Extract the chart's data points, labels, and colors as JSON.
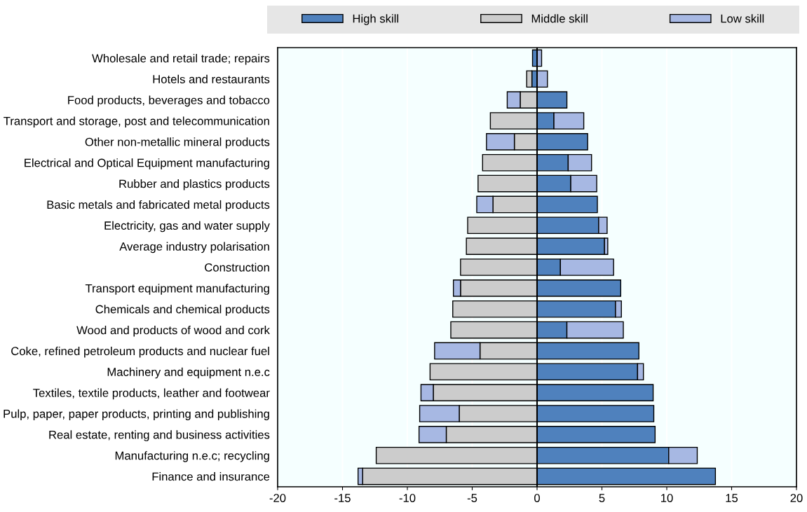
{
  "chart_data": {
    "type": "bar",
    "orientation": "horizontal",
    "stacked": true,
    "categories": [
      "Wholesale and retail trade; repairs",
      "Hotels and restaurants",
      "Food products, beverages and tobacco",
      "Transport and storage, post and telecommunication",
      "Other non-metallic mineral products",
      "Electrical and Optical Equipment manufacturing",
      "Rubber and plastics products",
      "Basic metals and fabricated metal products",
      "Electricity, gas and water supply",
      "Average industry polarisation",
      "Construction",
      "Transport equipment manufacturing",
      "Chemicals and chemical products",
      "Wood and products of wood and cork",
      "Coke, refined petroleum products and nuclear fuel",
      "Machinery and equipment n.e.c",
      "Textiles, textile products, leather and footwear",
      "Pulp, paper, paper products, printing and publishing",
      "Real estate, renting and business activities",
      "Manufacturing n.e.c; recycling",
      "Finance and insurance"
    ],
    "series": [
      {
        "name": "High skill",
        "color": "#4f81bd",
        "values": [
          -0.35,
          -0.4,
          2.3,
          1.3,
          3.9,
          2.4,
          2.6,
          4.65,
          4.75,
          5.2,
          1.8,
          6.45,
          6.05,
          2.3,
          7.85,
          7.75,
          8.95,
          9.0,
          9.1,
          10.15,
          13.75
        ]
      },
      {
        "name": "Middle skill",
        "color": "#cccccc",
        "values": [
          0,
          -0.4,
          -1.3,
          -3.6,
          -1.75,
          -4.2,
          -4.55,
          -3.4,
          -5.35,
          -5.45,
          -5.9,
          -5.9,
          -6.5,
          -6.65,
          -4.4,
          -8.25,
          -8.0,
          -6.0,
          -7.0,
          -12.4,
          -13.45
        ]
      },
      {
        "name": "Low skill",
        "color": "#a7b8e3",
        "values": [
          0.35,
          0.8,
          -1.0,
          2.3,
          -2.15,
          1.8,
          2.0,
          -1.25,
          0.65,
          0.25,
          4.1,
          -0.55,
          0.45,
          4.35,
          -3.5,
          0.45,
          -0.95,
          -3.05,
          -2.1,
          2.2,
          -0.35
        ]
      }
    ],
    "xlim": [
      -20,
      20
    ],
    "xticks": [
      -20,
      -15,
      -10,
      -5,
      0,
      5,
      10,
      15,
      20
    ],
    "grid": "x",
    "legend": "top"
  }
}
